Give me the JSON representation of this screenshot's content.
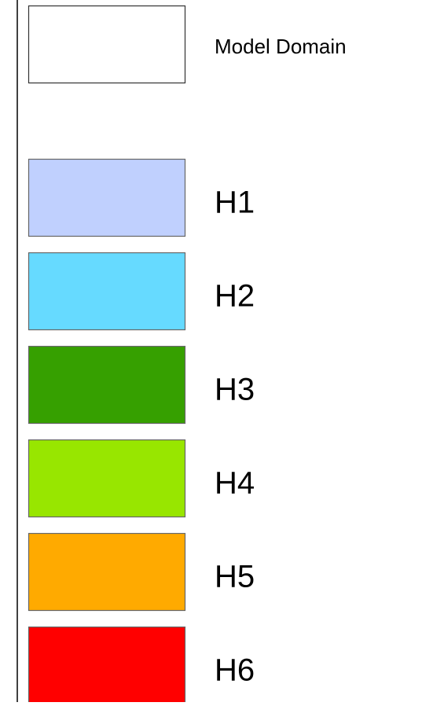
{
  "legend": {
    "items": [
      {
        "label": "Model Domain",
        "color": "#ffffff"
      },
      {
        "label": "H1",
        "color": "#c0d0fe"
      },
      {
        "label": "H2",
        "color": "#66daff"
      },
      {
        "label": "H3",
        "color": "#36a000"
      },
      {
        "label": "H4",
        "color": "#98e600"
      },
      {
        "label": "H5",
        "color": "#ffaa00"
      },
      {
        "label": "H6",
        "color": "#ff0000"
      }
    ]
  }
}
